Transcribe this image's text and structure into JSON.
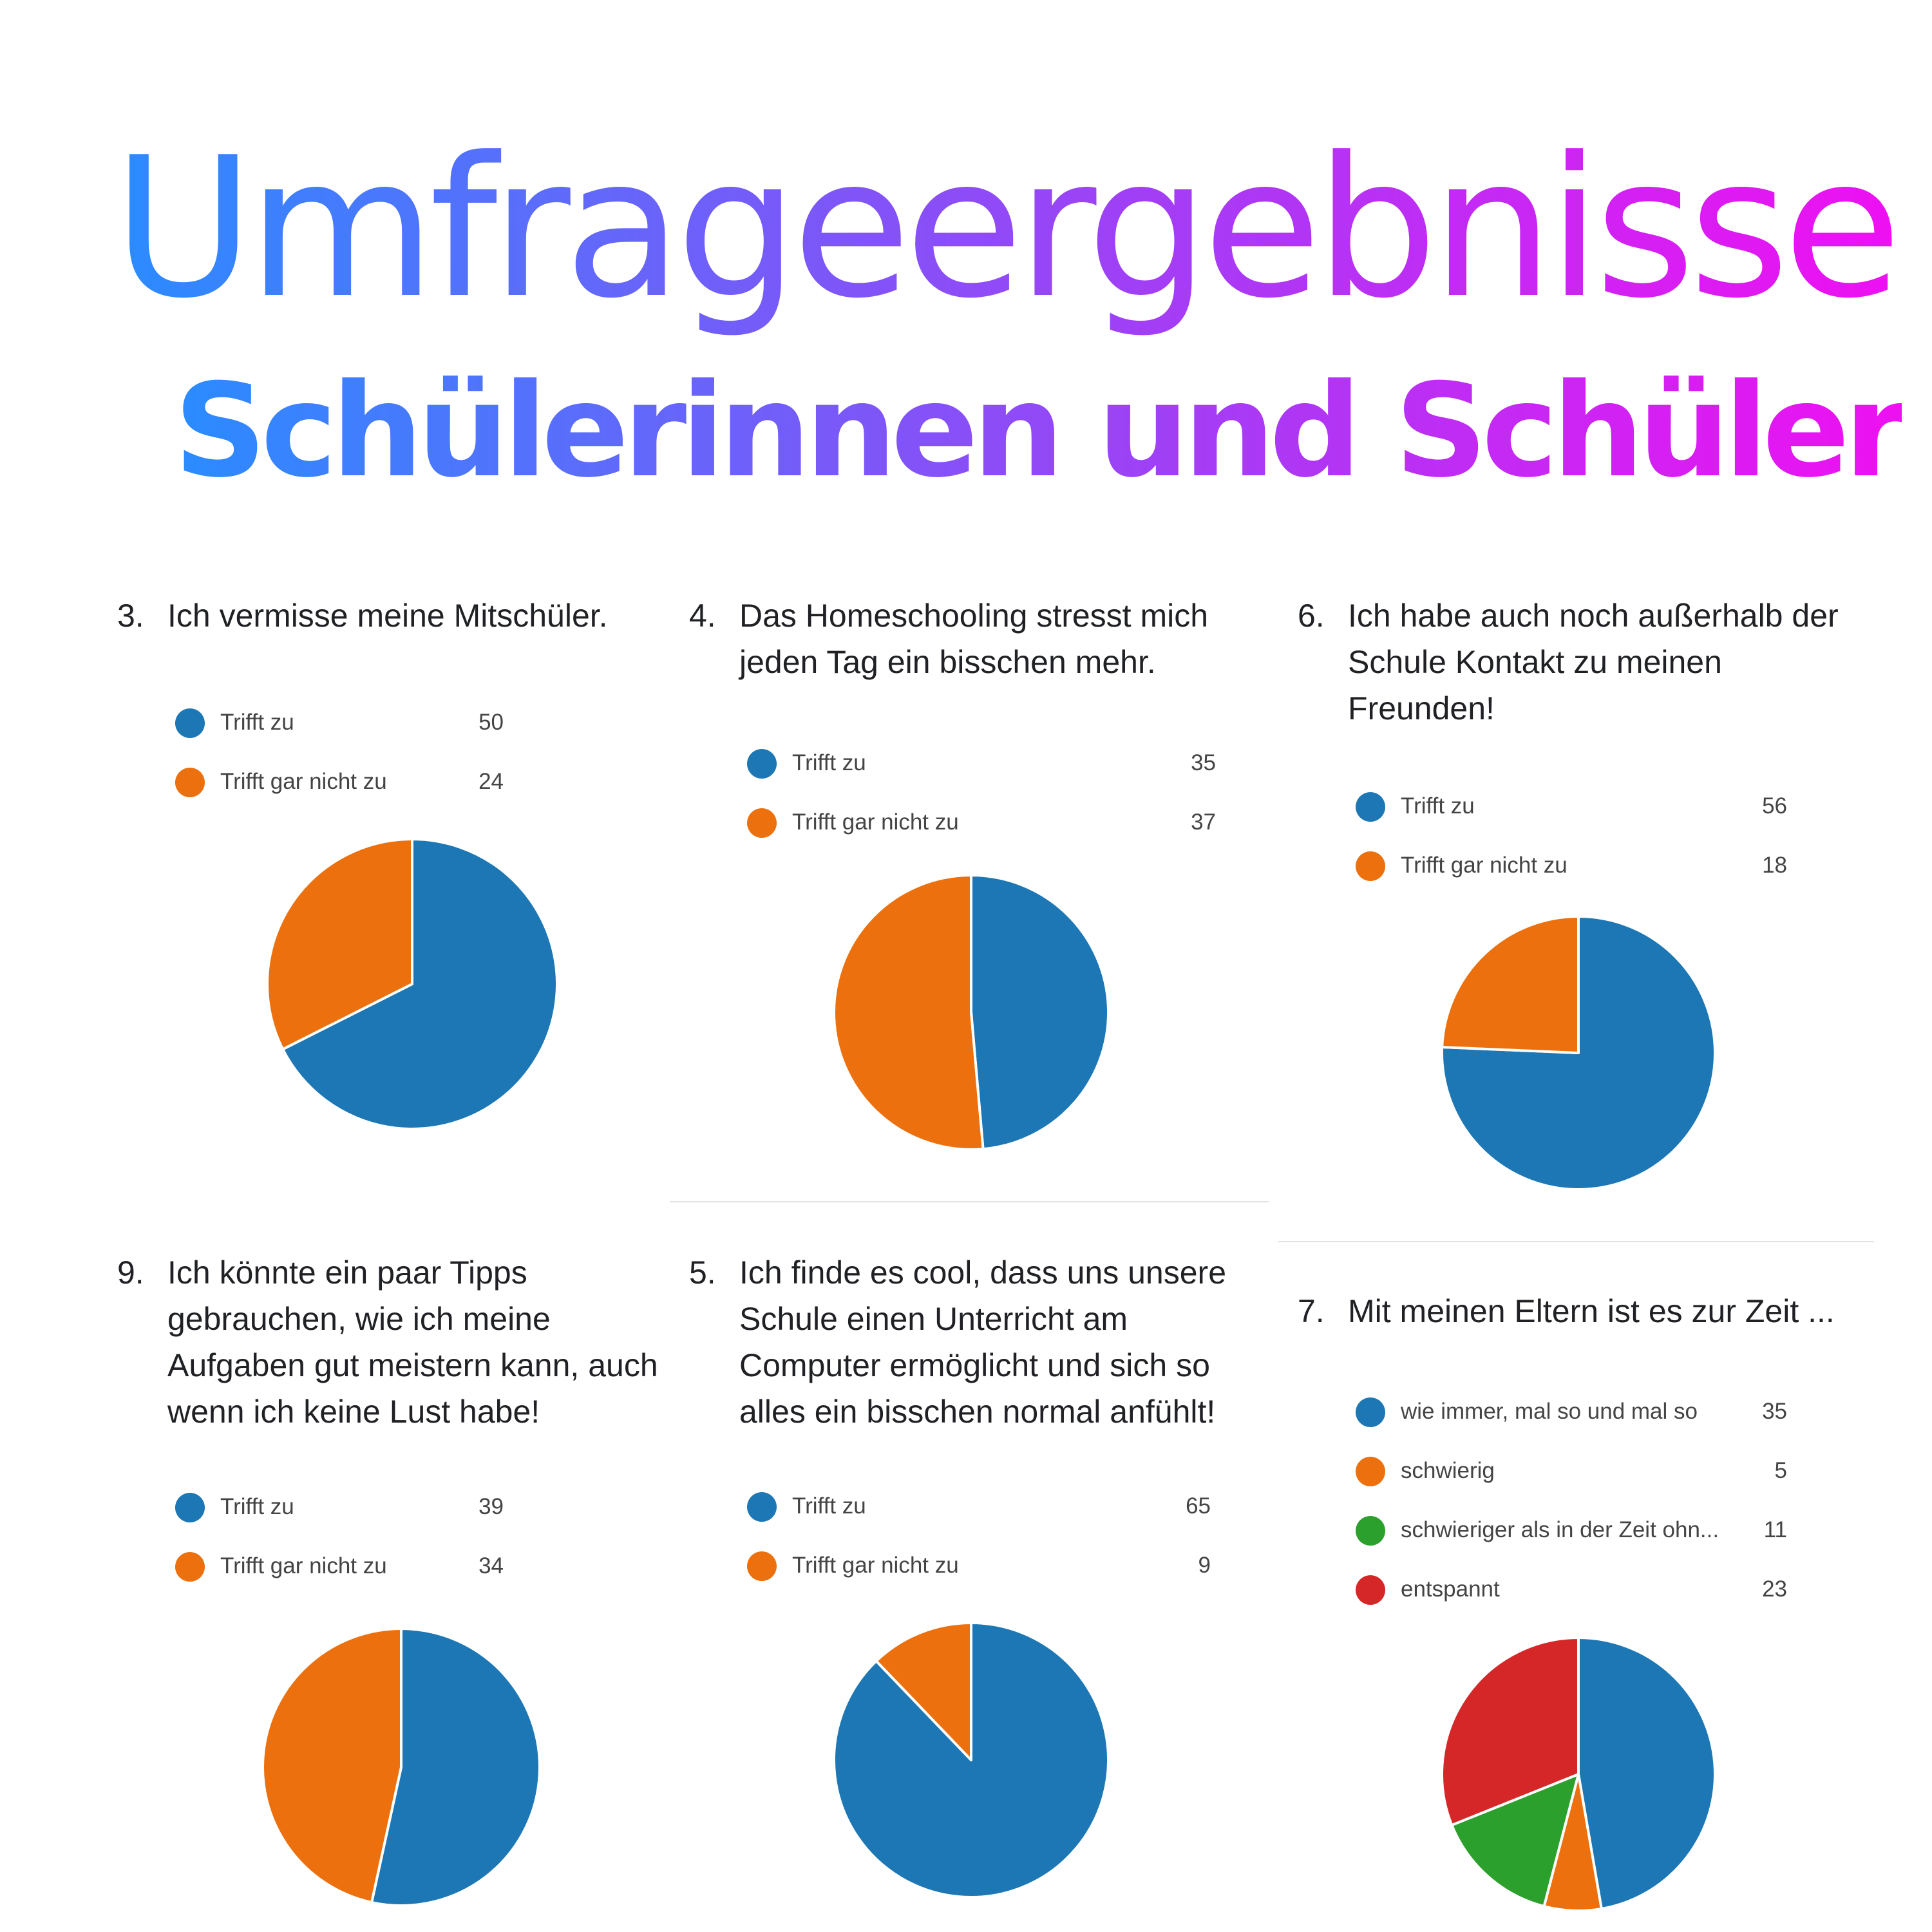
{
  "header": {
    "title": "Umfrageergebnisse",
    "subtitle": "Schülerinnen und Schüler"
  },
  "colors": {
    "blue": "#1c77b4",
    "orange": "#ec700e",
    "green": "#2ca02c",
    "red": "#d62728",
    "title_gradient_start": "#2a8cff",
    "title_gradient_end": "#ee10f2"
  },
  "chart_data": [
    {
      "type": "pie",
      "number": "3.",
      "question": "Ich vermisse meine Mitschüler.",
      "categories": [
        "Trifft zu",
        "Trifft gar nicht zu"
      ],
      "values": [
        50,
        24
      ]
    },
    {
      "type": "pie",
      "number": "4.",
      "question": "Das Homeschooling stresst mich jeden Tag ein bisschen mehr.",
      "categories": [
        "Trifft zu",
        "Trifft gar nicht zu"
      ],
      "values": [
        35,
        37
      ]
    },
    {
      "type": "pie",
      "number": "6.",
      "question": "Ich habe auch noch außerhalb der Schule Kontakt zu meinen Freunden!",
      "categories": [
        "Trifft zu",
        "Trifft gar nicht zu"
      ],
      "values": [
        56,
        18
      ]
    },
    {
      "type": "pie",
      "number": "9.",
      "question": "Ich könnte ein paar Tipps gebrauchen, wie ich meine Aufgaben gut meistern kann, auch wenn ich keine Lust habe!",
      "categories": [
        "Trifft zu",
        "Trifft gar nicht zu"
      ],
      "values": [
        39,
        34
      ]
    },
    {
      "type": "pie",
      "number": "5.",
      "question": "Ich finde es cool, dass uns unsere Schule einen Unterricht am Computer ermöglicht und sich so alles ein bisschen normal anfühlt!",
      "categories": [
        "Trifft zu",
        "Trifft gar nicht zu"
      ],
      "values": [
        65,
        9
      ]
    },
    {
      "type": "pie",
      "number": "7.",
      "question": "Mit meinen Eltern ist es zur Zeit ...",
      "categories": [
        "wie immer, mal so und mal so",
        "schwierig",
        "schwieriger als in der Zeit ohn...",
        "entspannt"
      ],
      "values": [
        35,
        5,
        11,
        23
      ]
    }
  ]
}
